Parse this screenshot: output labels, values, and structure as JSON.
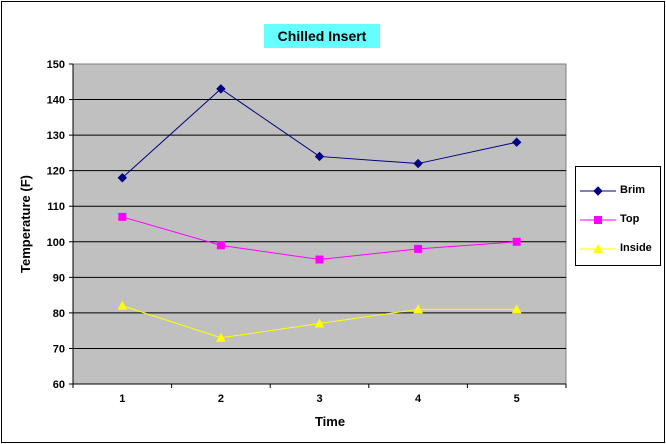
{
  "chart_data": {
    "type": "line",
    "title": "Chilled Insert",
    "xlabel": "Time",
    "ylabel": "Temperature (F)",
    "x": [
      1,
      2,
      3,
      4,
      5
    ],
    "ylim": [
      60,
      150
    ],
    "yticks": [
      60,
      70,
      80,
      90,
      100,
      110,
      120,
      130,
      140,
      150
    ],
    "grid": true,
    "legend_position": "right",
    "plot_background": "#c0c0c0",
    "series": [
      {
        "name": "Brim",
        "values": [
          118,
          143,
          124,
          122,
          128
        ],
        "color": "#000080",
        "marker": "diamond"
      },
      {
        "name": "Top",
        "values": [
          107,
          99,
          95,
          98,
          100
        ],
        "color": "#ff00ff",
        "marker": "square"
      },
      {
        "name": "Inside",
        "values": [
          82,
          73,
          77,
          81,
          81
        ],
        "color": "#ffff00",
        "marker": "triangle"
      }
    ]
  }
}
